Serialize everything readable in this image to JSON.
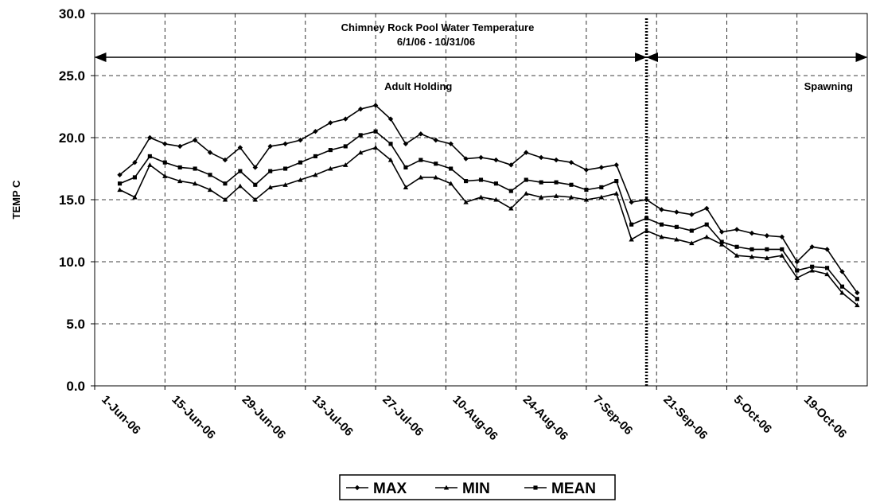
{
  "chart_data": {
    "type": "line",
    "title": "Chimney Rock Pool Water Temperature",
    "subtitle": "6/1/06 - 10/31/06",
    "y_label": "TEMP C",
    "annotations": [
      "Adult Holding",
      "Spawning"
    ],
    "divider": "2006-09-19",
    "x": [
      "2006-06-06",
      "2006-06-09",
      "2006-06-12",
      "2006-06-15",
      "2006-06-18",
      "2006-06-21",
      "2006-06-24",
      "2006-06-27",
      "2006-06-30",
      "2006-07-03",
      "2006-07-06",
      "2006-07-09",
      "2006-07-12",
      "2006-07-15",
      "2006-07-18",
      "2006-07-21",
      "2006-07-24",
      "2006-07-27",
      "2006-07-30",
      "2006-08-02",
      "2006-08-05",
      "2006-08-08",
      "2006-08-11",
      "2006-08-14",
      "2006-08-17",
      "2006-08-20",
      "2006-08-23",
      "2006-08-26",
      "2006-08-29",
      "2006-09-01",
      "2006-09-04",
      "2006-09-07",
      "2006-09-10",
      "2006-09-13",
      "2006-09-16",
      "2006-09-19",
      "2006-09-22",
      "2006-09-25",
      "2006-09-28",
      "2006-10-01",
      "2006-10-04",
      "2006-10-07",
      "2006-10-10",
      "2006-10-13",
      "2006-10-16",
      "2006-10-19",
      "2006-10-22",
      "2006-10-25",
      "2006-10-28",
      "2006-10-31"
    ],
    "series": [
      {
        "name": "MAX",
        "color": "#000000",
        "marker": "diamond",
        "values": [
          17.0,
          18.0,
          20.0,
          19.5,
          19.3,
          19.8,
          18.8,
          18.2,
          19.2,
          17.6,
          19.3,
          19.5,
          19.8,
          20.5,
          21.2,
          21.5,
          22.3,
          22.6,
          21.5,
          19.5,
          20.3,
          19.8,
          19.5,
          18.3,
          18.4,
          18.2,
          17.8,
          18.8,
          18.4,
          18.2,
          18.0,
          17.4,
          17.6,
          17.8,
          14.8,
          15.0,
          14.2,
          14.0,
          13.8,
          14.3,
          12.4,
          12.6,
          12.3,
          12.1,
          12.0,
          10.0,
          11.2,
          11.0,
          9.2,
          7.5
        ]
      },
      {
        "name": "MIN",
        "color": "#000000",
        "marker": "triangle",
        "values": [
          15.8,
          15.2,
          17.8,
          16.9,
          16.5,
          16.3,
          15.8,
          15.0,
          16.1,
          15.0,
          16.0,
          16.2,
          16.6,
          17.0,
          17.5,
          17.8,
          18.8,
          19.2,
          18.2,
          16.0,
          16.8,
          16.8,
          16.3,
          14.8,
          15.2,
          15.0,
          14.3,
          15.5,
          15.2,
          15.3,
          15.2,
          15.0,
          15.2,
          15.5,
          11.8,
          12.5,
          12.0,
          11.8,
          11.5,
          12.0,
          11.4,
          10.5,
          10.4,
          10.3,
          10.5,
          8.7,
          9.3,
          9.0,
          7.5,
          6.5
        ]
      },
      {
        "name": "MEAN",
        "color": "#000000",
        "marker": "square",
        "values": [
          16.3,
          16.8,
          18.5,
          18.0,
          17.6,
          17.5,
          17.0,
          16.3,
          17.3,
          16.2,
          17.3,
          17.5,
          18.0,
          18.5,
          19.0,
          19.3,
          20.2,
          20.5,
          19.5,
          17.6,
          18.2,
          17.9,
          17.5,
          16.5,
          16.6,
          16.3,
          15.7,
          16.6,
          16.4,
          16.4,
          16.2,
          15.8,
          16.0,
          16.5,
          13.0,
          13.5,
          13.0,
          12.8,
          12.5,
          13.0,
          11.6,
          11.2,
          11.0,
          11.0,
          11.0,
          9.3,
          9.6,
          9.5,
          8.0,
          7.0
        ]
      }
    ],
    "xlim": [
      "2006-06-01",
      "2006-11-02"
    ],
    "xticks": [
      {
        "value": "2006-06-01",
        "label": "1-Jun-06"
      },
      {
        "value": "2006-06-15",
        "label": "15-Jun-06"
      },
      {
        "value": "2006-06-29",
        "label": "29-Jun-06"
      },
      {
        "value": "2006-07-13",
        "label": "13-Jul-06"
      },
      {
        "value": "2006-07-27",
        "label": "27-Jul-06"
      },
      {
        "value": "2006-08-10",
        "label": "10-Aug-06"
      },
      {
        "value": "2006-08-24",
        "label": "24-Aug-06"
      },
      {
        "value": "2006-09-07",
        "label": "7-Sep-06"
      },
      {
        "value": "2006-09-21",
        "label": "21-Sep-06"
      },
      {
        "value": "2006-10-05",
        "label": "5-Oct-06"
      },
      {
        "value": "2006-10-19",
        "label": "19-Oct-06"
      }
    ],
    "ylim": [
      0,
      30
    ],
    "yticks": [
      {
        "value": 0,
        "label": "0.0"
      },
      {
        "value": 5,
        "label": "5.0"
      },
      {
        "value": 10,
        "label": "10.0"
      },
      {
        "value": 15,
        "label": "15.0"
      },
      {
        "value": 20,
        "label": "20.0"
      },
      {
        "value": 25,
        "label": "25.0"
      },
      {
        "value": 30,
        "label": "30.0"
      }
    ],
    "grid": true,
    "legend": "bottom"
  }
}
